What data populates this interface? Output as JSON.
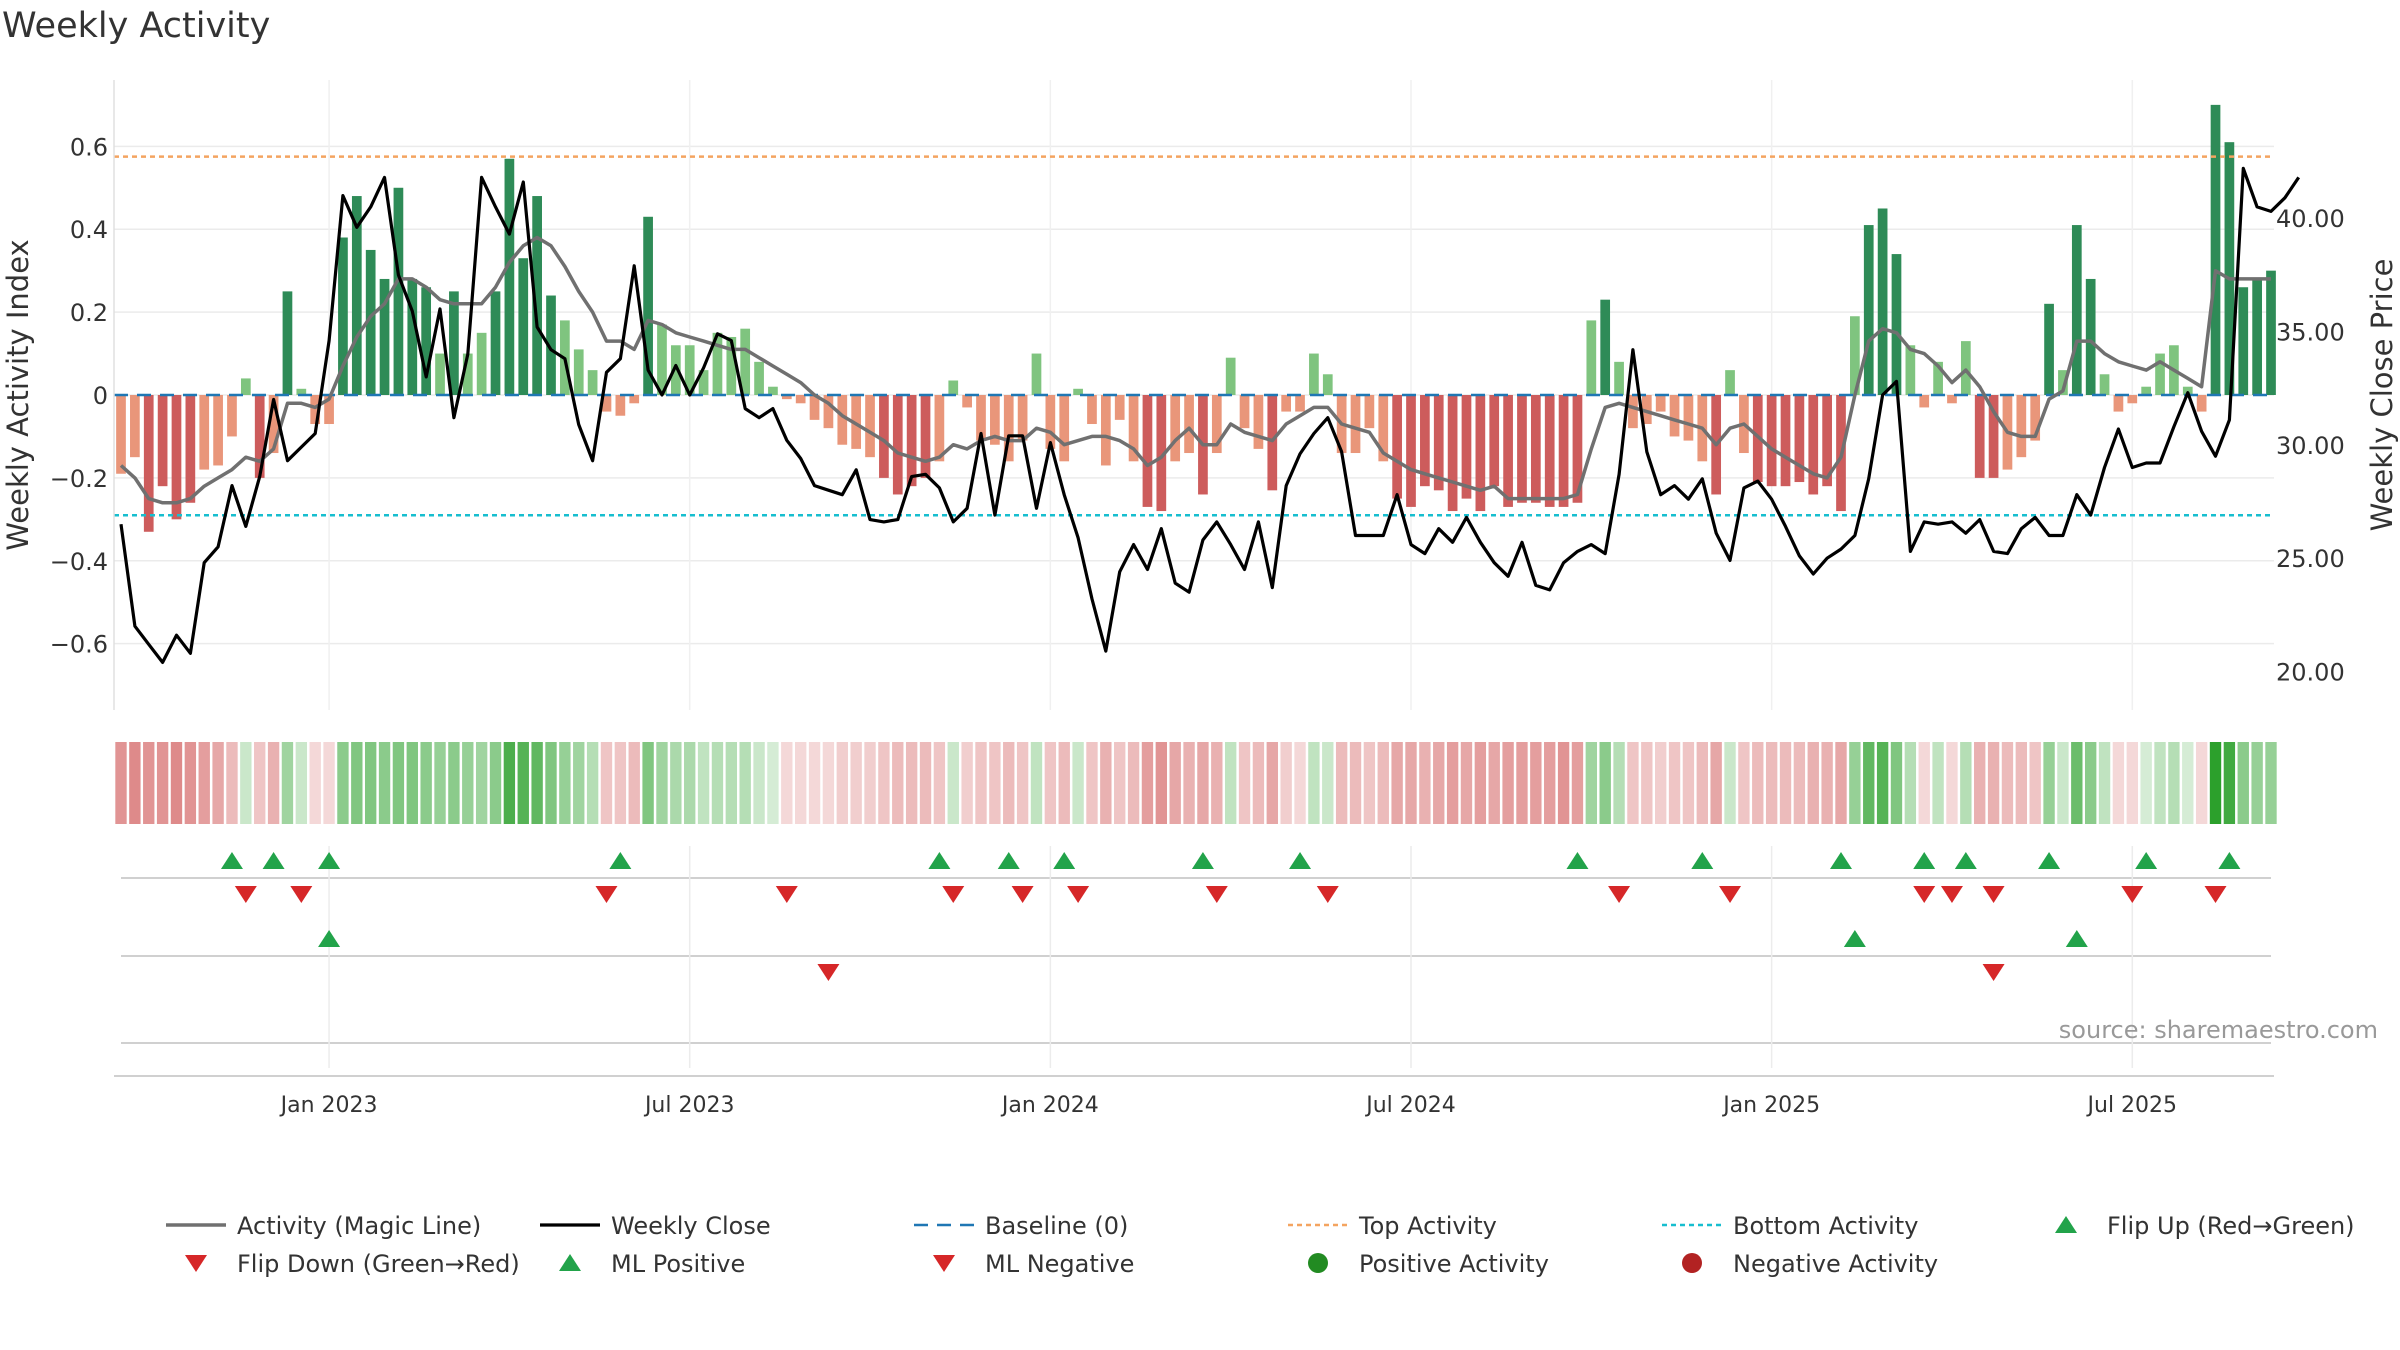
{
  "chart_data": {
    "type": "bar",
    "title": "Weekly Activity",
    "ylabel_left": "Weekly Activity Index",
    "ylabel_right": "Weekly Close Price",
    "source": "source: sharemaestro.com",
    "ylim_left": [
      -0.76,
      0.76
    ],
    "ylim_right": [
      18.3,
      46.1
    ],
    "left_ticks": [
      {
        "v": 0.6,
        "label": "0.6"
      },
      {
        "v": 0.4,
        "label": "0.4"
      },
      {
        "v": 0.2,
        "label": "0.2"
      },
      {
        "v": 0,
        "label": "0"
      },
      {
        "v": -0.2,
        "label": "−0.2"
      },
      {
        "v": -0.4,
        "label": "−0.4"
      },
      {
        "v": -0.6,
        "label": "−0.6"
      }
    ],
    "right_ticks": [
      {
        "v": 40,
        "label": "40.00"
      },
      {
        "v": 35,
        "label": "35.00"
      },
      {
        "v": 30,
        "label": "30.00"
      },
      {
        "v": 25,
        "label": "25.00"
      },
      {
        "v": 20,
        "label": "20.00"
      }
    ],
    "x_ticks": [
      {
        "week": 15,
        "label": "Jan 2023"
      },
      {
        "week": 41,
        "label": "Jul 2023"
      },
      {
        "week": 67,
        "label": "Jan 2024"
      },
      {
        "week": 93,
        "label": "Jul 2024"
      },
      {
        "week": 119,
        "label": "Jan 2025"
      },
      {
        "week": 145,
        "label": "Jul 2025"
      }
    ],
    "top_activity": 0.575,
    "bottom_activity": -0.29,
    "colors": {
      "strong_green": "#2e8b57",
      "light_green": "#7fc47f",
      "strong_red": "#cd5c5c",
      "light_red": "#e9967a",
      "close": "#000000",
      "magic": "#707070",
      "baseline": "#1f77b4",
      "top": "#f4a460",
      "bottom": "#17becf",
      "marker_green": "#22a34a",
      "marker_red": "#d62728",
      "legend_pos": "#228b22",
      "legend_neg": "#b22222"
    },
    "activity": [
      -0.19,
      -0.15,
      -0.33,
      -0.22,
      -0.3,
      -0.26,
      -0.18,
      -0.17,
      -0.1,
      0.04,
      -0.2,
      -0.14,
      0.25,
      0.015,
      -0.07,
      -0.07,
      0.38,
      0.48,
      0.35,
      0.28,
      0.5,
      0.28,
      0.26,
      0.1,
      0.25,
      0.1,
      0.15,
      0.25,
      0.57,
      0.33,
      0.48,
      0.24,
      0.18,
      0.11,
      0.06,
      -0.04,
      -0.05,
      -0.02,
      0.43,
      0.17,
      0.12,
      0.12,
      0.06,
      0.15,
      0.14,
      0.16,
      0.08,
      0.02,
      -0.01,
      -0.02,
      -0.06,
      -0.08,
      -0.12,
      -0.13,
      -0.15,
      -0.2,
      -0.24,
      -0.22,
      -0.2,
      -0.16,
      0.035,
      -0.03,
      -0.11,
      -0.12,
      -0.16,
      -0.11,
      0.1,
      -0.13,
      -0.16,
      0.015,
      -0.07,
      -0.17,
      -0.06,
      -0.16,
      -0.27,
      -0.28,
      -0.16,
      -0.14,
      -0.24,
      -0.14,
      0.09,
      -0.08,
      -0.13,
      -0.23,
      -0.04,
      -0.04,
      0.1,
      0.05,
      -0.14,
      -0.14,
      -0.08,
      -0.16,
      -0.25,
      -0.27,
      -0.22,
      -0.23,
      -0.28,
      -0.25,
      -0.28,
      -0.22,
      -0.27,
      -0.26,
      -0.26,
      -0.27,
      -0.27,
      -0.26,
      0.18,
      0.23,
      0.08,
      -0.08,
      -0.07,
      -0.04,
      -0.1,
      -0.11,
      -0.16,
      -0.24,
      0.06,
      -0.14,
      -0.21,
      -0.22,
      -0.22,
      -0.21,
      -0.24,
      -0.22,
      -0.28,
      0.19,
      0.41,
      0.45,
      0.34,
      0.12,
      -0.03,
      0.08,
      -0.02,
      0.13,
      -0.2,
      -0.2,
      -0.18,
      -0.15,
      -0.11,
      0.22,
      0.06,
      0.41,
      0.28,
      0.05,
      -0.04,
      -0.02,
      0.02,
      0.1,
      0.12,
      0.02,
      -0.04,
      0.7,
      0.61,
      0.26,
      0.28,
      0.3
    ],
    "magic_line": [
      -0.17,
      -0.2,
      -0.25,
      -0.26,
      -0.26,
      -0.25,
      -0.22,
      -0.2,
      -0.18,
      -0.15,
      -0.16,
      -0.13,
      -0.02,
      -0.02,
      -0.03,
      -0.01,
      0.07,
      0.14,
      0.19,
      0.22,
      0.28,
      0.28,
      0.26,
      0.23,
      0.22,
      0.22,
      0.22,
      0.26,
      0.32,
      0.36,
      0.38,
      0.36,
      0.31,
      0.25,
      0.2,
      0.13,
      0.13,
      0.11,
      0.18,
      0.17,
      0.15,
      0.14,
      0.13,
      0.12,
      0.11,
      0.11,
      0.09,
      0.07,
      0.05,
      0.03,
      0.0,
      -0.02,
      -0.05,
      -0.07,
      -0.09,
      -0.11,
      -0.14,
      -0.15,
      -0.16,
      -0.15,
      -0.12,
      -0.13,
      -0.11,
      -0.1,
      -0.11,
      -0.11,
      -0.08,
      -0.09,
      -0.12,
      -0.11,
      -0.1,
      -0.1,
      -0.11,
      -0.13,
      -0.17,
      -0.15,
      -0.11,
      -0.08,
      -0.12,
      -0.12,
      -0.07,
      -0.09,
      -0.1,
      -0.11,
      -0.07,
      -0.05,
      -0.03,
      -0.03,
      -0.07,
      -0.08,
      -0.09,
      -0.14,
      -0.16,
      -0.18,
      -0.19,
      -0.2,
      -0.21,
      -0.22,
      -0.23,
      -0.22,
      -0.25,
      -0.25,
      -0.25,
      -0.25,
      -0.25,
      -0.24,
      -0.13,
      -0.03,
      -0.02,
      -0.03,
      -0.04,
      -0.05,
      -0.06,
      -0.07,
      -0.08,
      -0.12,
      -0.08,
      -0.07,
      -0.1,
      -0.13,
      -0.15,
      -0.17,
      -0.19,
      -0.2,
      -0.15,
      0.0,
      0.13,
      0.16,
      0.15,
      0.11,
      0.1,
      0.07,
      0.03,
      0.06,
      0.02,
      -0.04,
      -0.09,
      -0.1,
      -0.1,
      -0.01,
      0.01,
      0.13,
      0.13,
      0.1,
      0.08,
      0.07,
      0.06,
      0.08,
      0.06,
      0.04,
      0.02,
      0.3,
      0.28,
      0.28,
      0.28,
      0.28
    ],
    "weekly_close": [
      26.5,
      22.0,
      21.2,
      20.4,
      21.6,
      20.8,
      24.8,
      25.5,
      28.2,
      26.4,
      28.6,
      32.0,
      29.3,
      29.9,
      30.5,
      34.6,
      41.0,
      39.6,
      40.5,
      41.8,
      37.5,
      35.9,
      33.0,
      36.0,
      31.2,
      34.0,
      41.8,
      40.5,
      39.3,
      41.6,
      35.2,
      34.2,
      33.8,
      30.9,
      29.3,
      33.2,
      33.8,
      37.9,
      33.3,
      32.2,
      33.5,
      32.2,
      33.4,
      34.9,
      34.6,
      31.6,
      31.2,
      31.6,
      30.2,
      29.4,
      28.2,
      28.0,
      27.8,
      28.9,
      26.7,
      26.6,
      26.7,
      28.6,
      28.7,
      28.1,
      26.6,
      27.2,
      30.5,
      26.9,
      30.4,
      30.4,
      27.2,
      30.1,
      27.8,
      25.9,
      23.2,
      20.9,
      24.4,
      25.6,
      24.5,
      26.3,
      23.9,
      23.5,
      25.8,
      26.6,
      25.6,
      24.5,
      26.6,
      23.7,
      28.2,
      29.6,
      30.5,
      31.2,
      29.7,
      26.0,
      26.0,
      26.0,
      27.8,
      25.6,
      25.2,
      26.3,
      25.7,
      26.8,
      25.7,
      24.8,
      24.2,
      25.7,
      23.8,
      23.6,
      24.8,
      25.3,
      25.6,
      25.2,
      28.7,
      34.2,
      29.7,
      27.8,
      28.2,
      27.6,
      28.5,
      26.1,
      24.9,
      28.1,
      28.4,
      27.6,
      26.4,
      25.1,
      24.3,
      25.0,
      25.4,
      26.0,
      28.5,
      32.2,
      32.8,
      25.3,
      26.6,
      26.5,
      26.6,
      26.1,
      26.7,
      25.3,
      25.2,
      26.3,
      26.8,
      26.0,
      26.0,
      27.8,
      26.9,
      29.0,
      30.7,
      29.0,
      29.2,
      29.2,
      30.8,
      32.3,
      30.6,
      29.5,
      31.1,
      42.2,
      40.5,
      40.3,
      40.9,
      41.8
    ],
    "heatmap_strengths": [
      0.55,
      0.6,
      0.55,
      0.55,
      0.6,
      0.55,
      0.5,
      0.45,
      0.35,
      0.25,
      0.3,
      0.4,
      0.45,
      0.25,
      0.2,
      0.2,
      0.55,
      0.6,
      0.6,
      0.55,
      0.6,
      0.6,
      0.55,
      0.5,
      0.55,
      0.5,
      0.45,
      0.55,
      0.85,
      0.8,
      0.75,
      0.6,
      0.5,
      0.45,
      0.35,
      0.3,
      0.3,
      0.35,
      0.6,
      0.45,
      0.4,
      0.4,
      0.3,
      0.35,
      0.35,
      0.35,
      0.25,
      0.2,
      0.2,
      0.2,
      0.2,
      0.2,
      0.25,
      0.25,
      0.25,
      0.3,
      0.35,
      0.35,
      0.35,
      0.3,
      0.25,
      0.25,
      0.3,
      0.3,
      0.35,
      0.3,
      0.3,
      0.3,
      0.35,
      0.25,
      0.3,
      0.4,
      0.3,
      0.35,
      0.5,
      0.55,
      0.45,
      0.4,
      0.45,
      0.4,
      0.3,
      0.3,
      0.35,
      0.45,
      0.25,
      0.2,
      0.3,
      0.25,
      0.35,
      0.35,
      0.3,
      0.35,
      0.45,
      0.45,
      0.4,
      0.45,
      0.5,
      0.45,
      0.5,
      0.45,
      0.5,
      0.5,
      0.5,
      0.5,
      0.55,
      0.5,
      0.45,
      0.55,
      0.35,
      0.3,
      0.3,
      0.25,
      0.3,
      0.3,
      0.35,
      0.45,
      0.25,
      0.3,
      0.35,
      0.35,
      0.35,
      0.35,
      0.4,
      0.4,
      0.45,
      0.5,
      0.75,
      0.8,
      0.6,
      0.35,
      0.2,
      0.3,
      0.2,
      0.35,
      0.4,
      0.4,
      0.35,
      0.35,
      0.3,
      0.5,
      0.25,
      0.7,
      0.55,
      0.3,
      0.2,
      0.2,
      0.2,
      0.3,
      0.35,
      0.2,
      0.2,
      1.0,
      0.9,
      0.55,
      0.5,
      0.5
    ],
    "flip_up_weeks": [
      8,
      11,
      15,
      36,
      59,
      64,
      68,
      78,
      85,
      105,
      114,
      124,
      130,
      133,
      139,
      146,
      152
    ],
    "flip_down_weeks": [
      9,
      13,
      35,
      48,
      60,
      65,
      69,
      79,
      87,
      108,
      116,
      130,
      132,
      135,
      145,
      151
    ],
    "ml_positive_weeks": [
      15,
      125,
      141
    ],
    "ml_negative_weeks": [
      51,
      135
    ],
    "legend": [
      {
        "label": "Activity (Magic Line)",
        "symbol": "magic-line"
      },
      {
        "label": "Weekly Close",
        "symbol": "close-line"
      },
      {
        "label": "Baseline (0)",
        "symbol": "baseline-dash"
      },
      {
        "label": "Top Activity",
        "symbol": "top-dash"
      },
      {
        "label": "Bottom Activity",
        "symbol": "bottom-dash"
      },
      {
        "label": "Flip Up (Red→Green)",
        "symbol": "triangle-up"
      },
      {
        "label": "Flip Down (Green→Red)",
        "symbol": "triangle-down"
      },
      {
        "label": "ML Positive",
        "symbol": "triangle-up"
      },
      {
        "label": "ML Negative",
        "symbol": "triangle-down"
      },
      {
        "label": "Positive Activity",
        "symbol": "dot-green"
      },
      {
        "label": "Negative Activity",
        "symbol": "dot-red"
      }
    ]
  }
}
